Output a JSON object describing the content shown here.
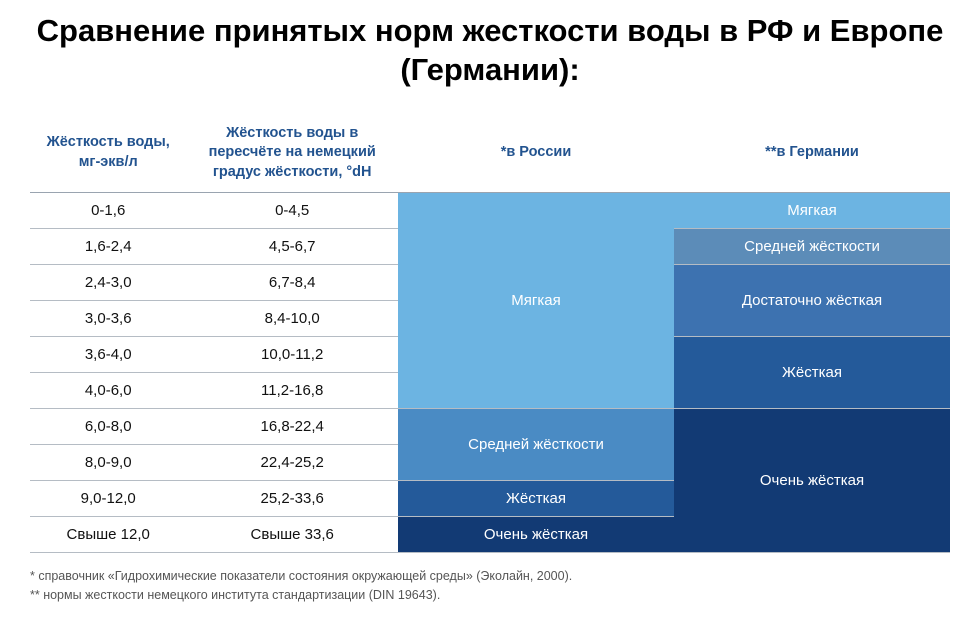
{
  "title": "Сравнение принятых норм жесткости воды в РФ  и Европе (Германии):",
  "headers": {
    "c1": "Жёсткость воды, мг-экв/л",
    "c2": "Жёсткость воды в пересчёте на немецкий градус жёсткости, °dH",
    "c3": "*в России",
    "c4": "**в Германии"
  },
  "col1": [
    "0-1,6",
    "1,6-2,4",
    "2,4-3,0",
    "3,0-3,6",
    "3,6-4,0",
    "4,0-6,0",
    "6,0-8,0",
    "8,0-9,0",
    "9,0-12,0",
    "Свыше 12,0"
  ],
  "col2": [
    "0-4,5",
    "4,5-6,7",
    "6,7-8,4",
    "8,4-10,0",
    "10,0-11,2",
    "11,2-16,8",
    "16,8-22,4",
    "22,4-25,2",
    "25,2-33,6",
    "Свыше 33,6"
  ],
  "russia": {
    "soft": {
      "label": "Мягкая",
      "color": "#6cb4e2",
      "rows": 6
    },
    "medium": {
      "label": "Средней жёсткости",
      "color": "#4a8bc4",
      "rows": 2
    },
    "hard": {
      "label": "Жёсткая",
      "color": "#245a9a",
      "rows": 1
    },
    "vhard": {
      "label": "Очень жёсткая",
      "color": "#123a74",
      "rows": 1
    }
  },
  "germany": {
    "soft": {
      "label": "Мягкая",
      "color": "#6cb4e2",
      "rows": 1
    },
    "medium": {
      "label": "Средней жёсткости",
      "color": "#5c8cb8",
      "rows": 1
    },
    "enough": {
      "label": "Достаточно жёсткая",
      "color": "#3d72b0",
      "rows": 2
    },
    "hard": {
      "label": "Жёсткая",
      "color": "#245a9a",
      "rows": 2
    },
    "vhard": {
      "label": "Очень жёсткая",
      "color": "#123a74",
      "rows": 4
    }
  },
  "footnotes": {
    "f1": "* справочник «Гидрохимические показатели состояния окружающей среды» (Эколайн, 2000).",
    "f2": "** нормы жесткости немецкого института стандартизации (DIN 19643)."
  }
}
